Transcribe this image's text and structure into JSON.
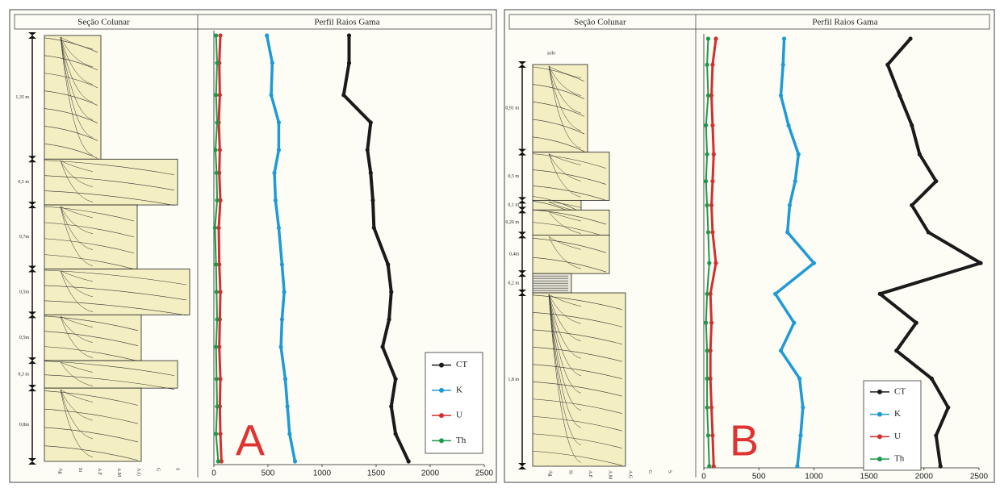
{
  "panels": [
    {
      "label": "A",
      "section": {
        "title": "Seção Colunar",
        "beds": [
          {
            "label": "1,35 m",
            "thickness": 1.35
          },
          {
            "label": "0,5 m",
            "thickness": 0.5
          },
          {
            "label": "0,7m",
            "thickness": 0.7
          },
          {
            "label": "0,5m",
            "thickness": 0.5
          },
          {
            "label": "0,5m",
            "thickness": 0.5
          },
          {
            "label": "0,3 m",
            "thickness": 0.3
          },
          {
            "label": "0,8m",
            "thickness": 0.8
          }
        ],
        "grain_sizes": [
          "Ag",
          "Si",
          "A.F",
          "A.M",
          "A.G",
          "G",
          "S"
        ]
      }
    },
    {
      "label": "B",
      "section": {
        "title": "Seção Colunar",
        "top_label": "solo",
        "beds": [
          {
            "label": "0,91 m",
            "thickness": 0.91
          },
          {
            "label": "0,5 m",
            "thickness": 0.5
          },
          {
            "label": "0,1 m",
            "thickness": 0.1
          },
          {
            "label": "0,26 m",
            "thickness": 0.26
          },
          {
            "label": "0,4m",
            "thickness": 0.4
          },
          {
            "label": "0,2 m",
            "thickness": 0.2
          },
          {
            "label": "1,8 m",
            "thickness": 1.8
          }
        ],
        "grain_sizes": [
          "Ag",
          "Si",
          "A.F",
          "A.M",
          "A.G",
          "G",
          "S."
        ]
      }
    }
  ],
  "chart_data": [
    {
      "type": "line",
      "title": "Perfil Raios Gama",
      "y": [
        0,
        0.3,
        0.65,
        0.95,
        1.25,
        1.5,
        1.8,
        2.1,
        2.5,
        2.8,
        3.1,
        3.4,
        3.75,
        4.05,
        4.35,
        4.65
      ],
      "ylim": [
        0,
        4.65
      ],
      "xlim": [
        0,
        2500
      ],
      "xticks": [
        0,
        500,
        1000,
        1500,
        2000,
        2500
      ],
      "legend": "lower right",
      "series": [
        {
          "name": "CT",
          "color": "#1a1a1a",
          "values": [
            1250,
            1250,
            1200,
            1450,
            1420,
            1450,
            1470,
            1480,
            1610,
            1640,
            1620,
            1560,
            1680,
            1640,
            1680,
            1800
          ]
        },
        {
          "name": "K",
          "color": "#1e9ad6",
          "values": [
            490,
            540,
            530,
            600,
            600,
            560,
            570,
            600,
            630,
            650,
            630,
            620,
            660,
            680,
            700,
            750
          ]
        },
        {
          "name": "U",
          "color": "#d62d2d",
          "values": [
            60,
            50,
            55,
            45,
            55,
            50,
            60,
            45,
            50,
            60,
            55,
            50,
            60,
            55,
            60,
            70
          ]
        },
        {
          "name": "Th",
          "color": "#1a9a4a",
          "values": [
            20,
            30,
            20,
            30,
            15,
            25,
            30,
            10,
            20,
            25,
            30,
            20,
            25,
            30,
            20,
            40
          ]
        }
      ]
    },
    {
      "type": "line",
      "title": "Perfil Raios Gama",
      "y": [
        0,
        0.27,
        0.59,
        0.9,
        1.2,
        1.48,
        1.73,
        2.01,
        2.33,
        2.65,
        2.95,
        3.24,
        3.53,
        3.83,
        4.12,
        4.44
      ],
      "ylim": [
        0,
        4.44
      ],
      "xlim": [
        0,
        2500
      ],
      "xticks": [
        0,
        500,
        1000,
        1500,
        2000,
        2500
      ],
      "legend": "lower right",
      "series": [
        {
          "name": "CT",
          "color": "#1a1a1a",
          "values": [
            1877,
            1670,
            1780,
            1890,
            1960,
            2110,
            1890,
            2040,
            2515,
            1600,
            1930,
            1750,
            2070,
            2220,
            2110,
            2150
          ]
        },
        {
          "name": "K",
          "color": "#1e9ad6",
          "values": [
            730,
            720,
            700,
            770,
            860,
            830,
            780,
            760,
            1000,
            650,
            820,
            700,
            870,
            900,
            880,
            850
          ]
        },
        {
          "name": "U",
          "color": "#d62d2d",
          "values": [
            110,
            80,
            70,
            80,
            90,
            80,
            70,
            80,
            110,
            60,
            70,
            60,
            60,
            70,
            80,
            90
          ]
        },
        {
          "name": "Th",
          "color": "#1a9a4a",
          "values": [
            40,
            30,
            40,
            20,
            30,
            20,
            30,
            40,
            50,
            30,
            20,
            30,
            30,
            30,
            40,
            50
          ]
        }
      ]
    }
  ]
}
